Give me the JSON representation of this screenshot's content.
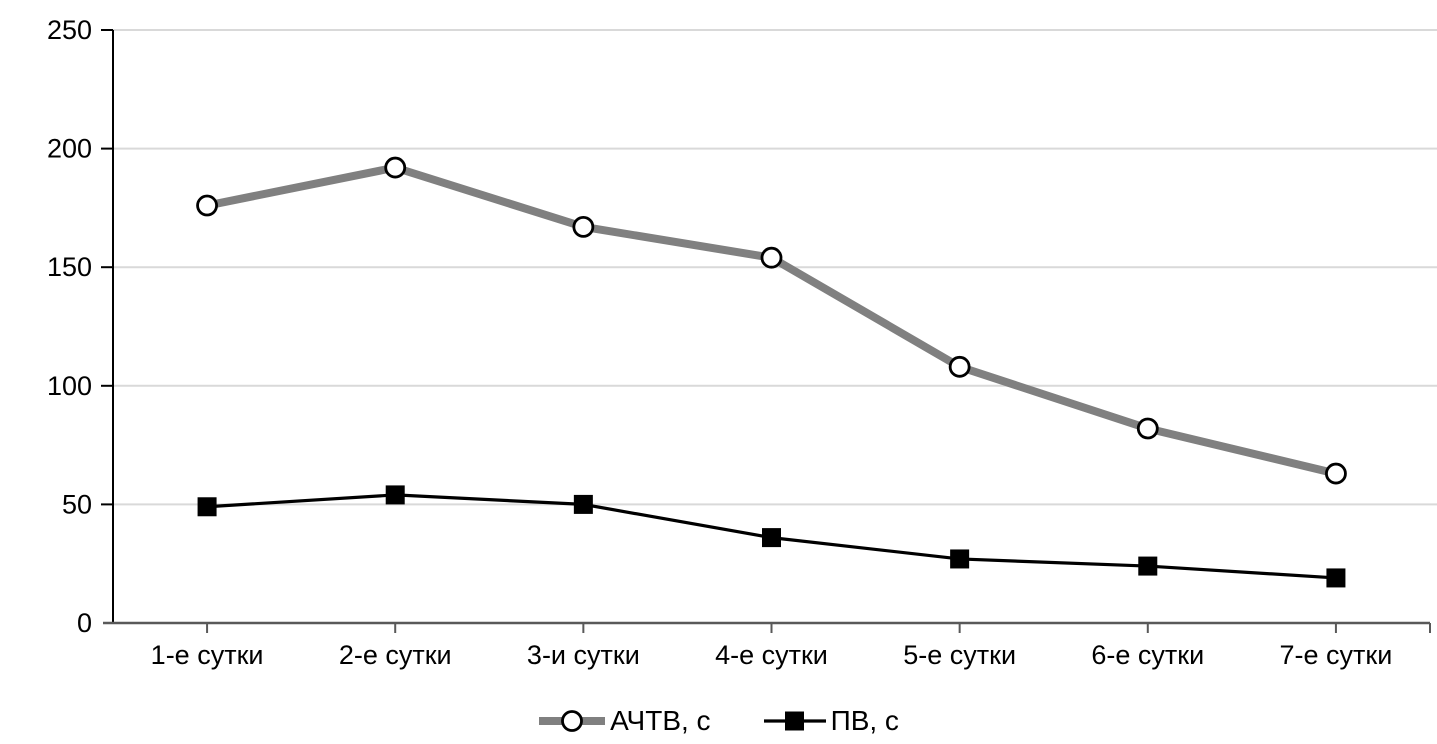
{
  "chart_data": {
    "type": "line",
    "title": "",
    "xlabel": "",
    "ylabel": "",
    "categories": [
      "1-е сутки",
      "2-е сутки",
      "3-и сутки",
      "4-е сутки",
      "5-е сутки",
      "6-е сутки",
      "7-е сутки"
    ],
    "series": [
      {
        "name": "АЧТВ, с",
        "values": [
          176,
          192,
          167,
          154,
          108,
          82,
          63
        ],
        "color": "#808080",
        "marker": "circle-open",
        "line_width": 8
      },
      {
        "name": "ПВ, с",
        "values": [
          49,
          54,
          50,
          36,
          27,
          24,
          19
        ],
        "color": "#000000",
        "marker": "square-filled",
        "line_width": 3.2
      }
    ],
    "ylim": [
      0,
      250
    ],
    "yticks": [
      0,
      50,
      100,
      150,
      200,
      250
    ],
    "grid": true,
    "legend_position": "bottom",
    "colors": {
      "gridline": "#D9D9D9",
      "x_axis": "#595959",
      "y_axis": "#000000",
      "background": "#FFFFFF",
      "marker_outline": "#000000",
      "marker_fill_open": "#FFFFFF"
    }
  }
}
